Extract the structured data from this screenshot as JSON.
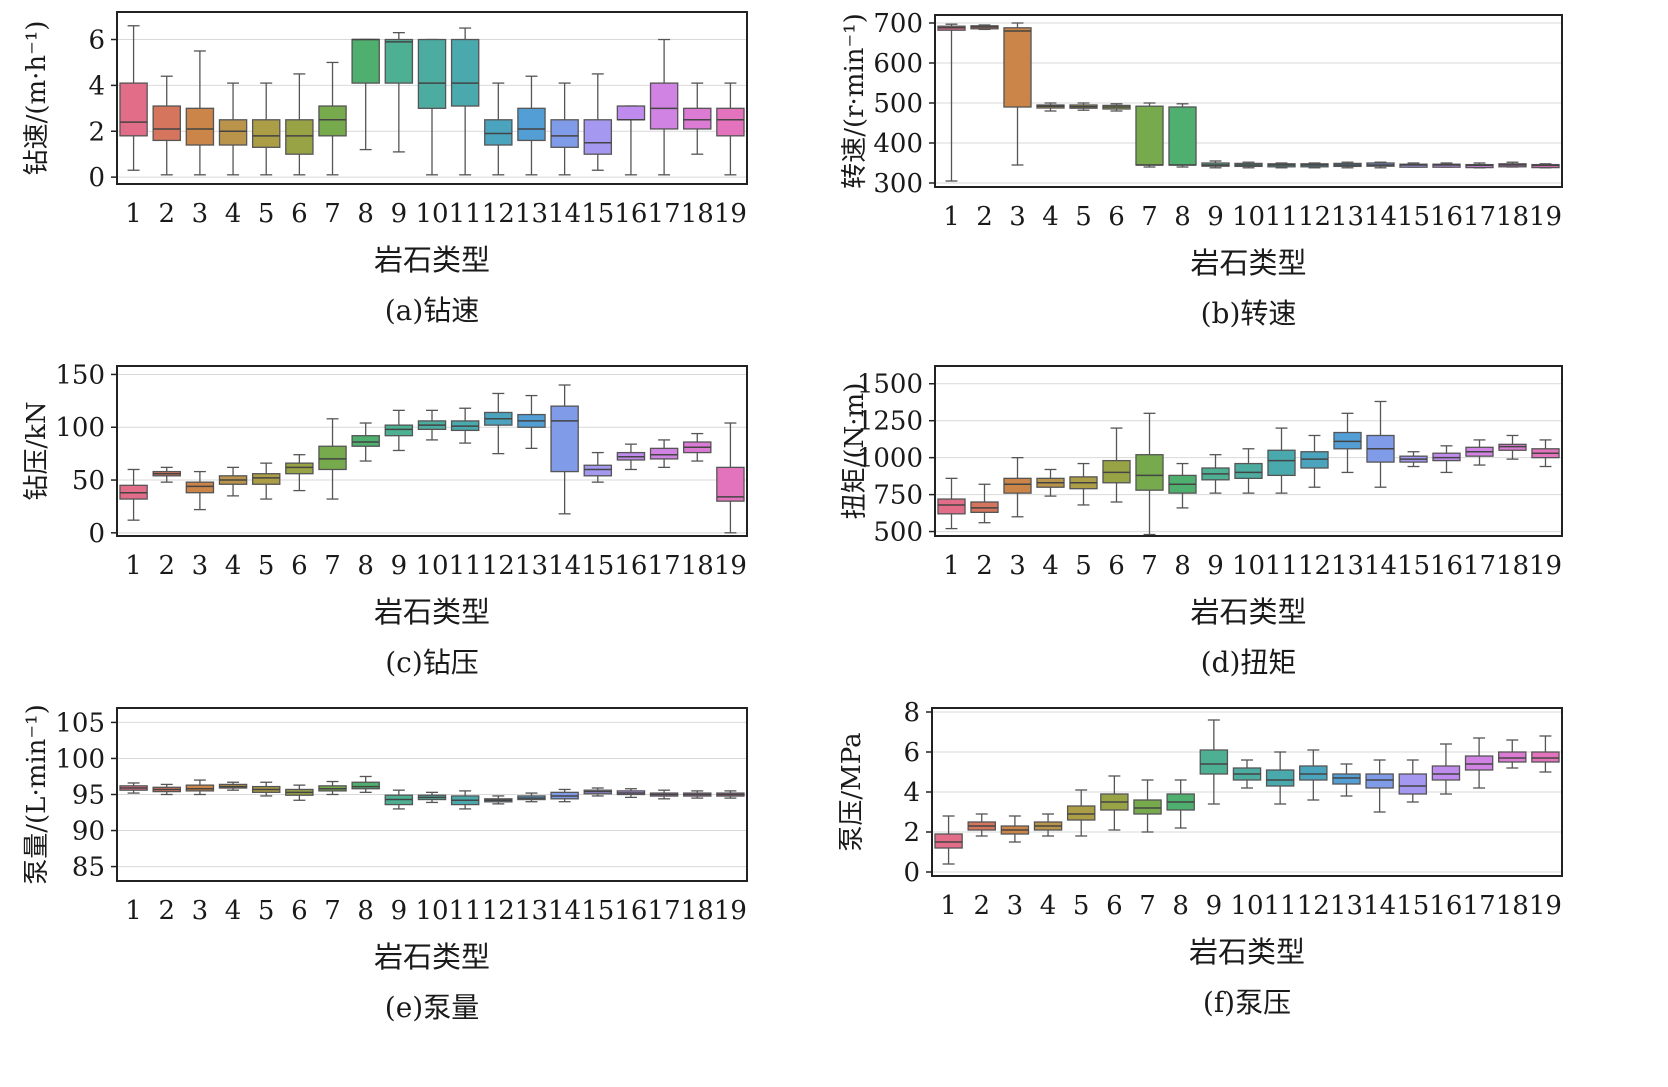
{
  "figure_colors": [
    "#e0607e",
    "#d2694f",
    "#c77a38",
    "#b48b3b",
    "#a59437",
    "#8f9b36",
    "#6aa33e",
    "#3fa861",
    "#3ea98a",
    "#3ca598",
    "#3aa1a6",
    "#3b9cb8",
    "#4496d0",
    "#7592e6",
    "#9d8ff0",
    "#b982ec",
    "#cc78df",
    "#d86fd0",
    "#e067b6"
  ],
  "chart_data": [
    {
      "type": "box",
      "id": "a",
      "caption": "(a)钻速",
      "ylabel": "钻速/(m·h⁻¹)",
      "xlabel": "岩石类型",
      "categories": [
        "1",
        "2",
        "3",
        "4",
        "5",
        "6",
        "7",
        "8",
        "9",
        "10",
        "11",
        "12",
        "13",
        "14",
        "15",
        "16",
        "17",
        "18",
        "19"
      ],
      "ylim": [
        -0.3,
        7.2
      ],
      "yticks": [
        0,
        2,
        4,
        6
      ],
      "grid": true,
      "boxes": [
        {
          "min": 0.3,
          "q1": 1.8,
          "median": 2.4,
          "q3": 4.1,
          "max": 6.6
        },
        {
          "min": 0.1,
          "q1": 1.6,
          "median": 2.1,
          "q3": 3.1,
          "max": 4.4
        },
        {
          "min": 0.1,
          "q1": 1.4,
          "median": 2.1,
          "q3": 3.0,
          "max": 5.5
        },
        {
          "min": 0.1,
          "q1": 1.4,
          "median": 2.0,
          "q3": 2.5,
          "max": 4.1
        },
        {
          "min": 0.1,
          "q1": 1.3,
          "median": 1.8,
          "q3": 2.5,
          "max": 4.1
        },
        {
          "min": 0.1,
          "q1": 1.0,
          "median": 1.8,
          "q3": 2.5,
          "max": 4.5
        },
        {
          "min": 0.1,
          "q1": 1.8,
          "median": 2.5,
          "q3": 3.1,
          "max": 5.0
        },
        {
          "min": 1.2,
          "q1": 4.1,
          "median": 6.0,
          "q3": 6.0,
          "max": 6.0
        },
        {
          "min": 1.1,
          "q1": 4.1,
          "median": 5.9,
          "q3": 6.0,
          "max": 6.3
        },
        {
          "min": 0.1,
          "q1": 3.0,
          "median": 4.1,
          "q3": 6.0,
          "max": 6.0
        },
        {
          "min": 0.1,
          "q1": 3.1,
          "median": 4.1,
          "q3": 6.0,
          "max": 6.5
        },
        {
          "min": 0.1,
          "q1": 1.4,
          "median": 1.9,
          "q3": 2.5,
          "max": 4.1
        },
        {
          "min": 0.1,
          "q1": 1.6,
          "median": 2.1,
          "q3": 3.0,
          "max": 4.4
        },
        {
          "min": 0.1,
          "q1": 1.3,
          "median": 1.8,
          "q3": 2.5,
          "max": 4.1
        },
        {
          "min": 0.3,
          "q1": 1.0,
          "median": 1.5,
          "q3": 2.5,
          "max": 4.5
        },
        {
          "min": 0.1,
          "q1": 2.5,
          "median": 2.5,
          "q3": 3.1,
          "max": 3.1
        },
        {
          "min": 0.1,
          "q1": 2.1,
          "median": 3.0,
          "q3": 4.1,
          "max": 6.0
        },
        {
          "min": 1.0,
          "q1": 2.1,
          "median": 2.5,
          "q3": 3.0,
          "max": 4.1
        },
        {
          "min": 0.1,
          "q1": 1.8,
          "median": 2.5,
          "q3": 3.0,
          "max": 4.1
        }
      ]
    },
    {
      "type": "box",
      "id": "b",
      "caption": "(b)转速",
      "ylabel": "转速/(r·min⁻¹)",
      "xlabel": "岩石类型",
      "categories": [
        "1",
        "2",
        "3",
        "4",
        "5",
        "6",
        "7",
        "8",
        "9",
        "10",
        "11",
        "12",
        "13",
        "14",
        "15",
        "16",
        "17",
        "18",
        "19"
      ],
      "ylim": [
        290,
        720
      ],
      "yticks": [
        300,
        400,
        500,
        600,
        700
      ],
      "grid": true,
      "boxes": [
        {
          "min": 305,
          "q1": 682,
          "median": 688,
          "q3": 692,
          "max": 697
        },
        {
          "min": 684,
          "q1": 686,
          "median": 690,
          "q3": 693,
          "max": 695
        },
        {
          "min": 345,
          "q1": 490,
          "median": 680,
          "q3": 688,
          "max": 700
        },
        {
          "min": 480,
          "q1": 488,
          "median": 492,
          "q3": 495,
          "max": 500
        },
        {
          "min": 482,
          "q1": 487,
          "median": 491,
          "q3": 495,
          "max": 500
        },
        {
          "min": 480,
          "q1": 485,
          "median": 490,
          "q3": 494,
          "max": 498
        },
        {
          "min": 340,
          "q1": 345,
          "median": 345,
          "q3": 492,
          "max": 500
        },
        {
          "min": 340,
          "q1": 345,
          "median": 345,
          "q3": 490,
          "max": 498
        },
        {
          "min": 338,
          "q1": 342,
          "median": 345,
          "q3": 350,
          "max": 355
        },
        {
          "min": 338,
          "q1": 342,
          "median": 345,
          "q3": 349,
          "max": 352
        },
        {
          "min": 338,
          "q1": 342,
          "median": 345,
          "q3": 348,
          "max": 350
        },
        {
          "min": 338,
          "q1": 342,
          "median": 345,
          "q3": 348,
          "max": 350
        },
        {
          "min": 338,
          "q1": 342,
          "median": 345,
          "q3": 349,
          "max": 352
        },
        {
          "min": 338,
          "q1": 342,
          "median": 345,
          "q3": 350,
          "max": 352
        },
        {
          "min": 340,
          "q1": 343,
          "median": 345,
          "q3": 347,
          "max": 350
        },
        {
          "min": 340,
          "q1": 343,
          "median": 345,
          "q3": 347,
          "max": 350
        },
        {
          "min": 338,
          "q1": 342,
          "median": 344,
          "q3": 346,
          "max": 350
        },
        {
          "min": 340,
          "q1": 342,
          "median": 345,
          "q3": 348,
          "max": 352
        },
        {
          "min": 338,
          "q1": 342,
          "median": 344,
          "q3": 346,
          "max": 348
        }
      ]
    },
    {
      "type": "box",
      "id": "c",
      "caption": "(c)钻压",
      "ylabel": "钻压/kN",
      "xlabel": "岩石类型",
      "categories": [
        "1",
        "2",
        "3",
        "4",
        "5",
        "6",
        "7",
        "8",
        "9",
        "10",
        "11",
        "12",
        "13",
        "14",
        "15",
        "16",
        "17",
        "18",
        "19"
      ],
      "ylim": [
        -3,
        158
      ],
      "yticks": [
        0,
        50,
        100,
        150
      ],
      "grid": true,
      "boxes": [
        {
          "min": 12,
          "q1": 32,
          "median": 38,
          "q3": 45,
          "max": 60
        },
        {
          "min": 48,
          "q1": 54,
          "median": 56,
          "q3": 58,
          "max": 62
        },
        {
          "min": 22,
          "q1": 38,
          "median": 44,
          "q3": 48,
          "max": 58
        },
        {
          "min": 35,
          "q1": 46,
          "median": 50,
          "q3": 54,
          "max": 62
        },
        {
          "min": 32,
          "q1": 46,
          "median": 52,
          "q3": 56,
          "max": 66
        },
        {
          "min": 40,
          "q1": 56,
          "median": 62,
          "q3": 66,
          "max": 74
        },
        {
          "min": 32,
          "q1": 60,
          "median": 70,
          "q3": 82,
          "max": 108
        },
        {
          "min": 68,
          "q1": 82,
          "median": 86,
          "q3": 92,
          "max": 104
        },
        {
          "min": 78,
          "q1": 92,
          "median": 98,
          "q3": 102,
          "max": 116
        },
        {
          "min": 88,
          "q1": 98,
          "median": 102,
          "q3": 106,
          "max": 116
        },
        {
          "min": 85,
          "q1": 97,
          "median": 101,
          "q3": 106,
          "max": 118
        },
        {
          "min": 75,
          "q1": 102,
          "median": 108,
          "q3": 114,
          "max": 132
        },
        {
          "min": 80,
          "q1": 100,
          "median": 106,
          "q3": 112,
          "max": 130
        },
        {
          "min": 18,
          "q1": 58,
          "median": 106,
          "q3": 120,
          "max": 140
        },
        {
          "min": 48,
          "q1": 54,
          "median": 60,
          "q3": 64,
          "max": 76
        },
        {
          "min": 60,
          "q1": 69,
          "median": 72,
          "q3": 76,
          "max": 84
        },
        {
          "min": 62,
          "q1": 70,
          "median": 74,
          "q3": 80,
          "max": 88
        },
        {
          "min": 68,
          "q1": 76,
          "median": 81,
          "q3": 86,
          "max": 94
        },
        {
          "min": 0,
          "q1": 30,
          "median": 34,
          "q3": 62,
          "max": 104
        }
      ]
    },
    {
      "type": "box",
      "id": "d",
      "caption": "(d)扭矩",
      "ylabel": "扭矩/(N·m)",
      "xlabel": "岩石类型",
      "categories": [
        "1",
        "2",
        "3",
        "4",
        "5",
        "6",
        "7",
        "8",
        "9",
        "10",
        "11",
        "12",
        "13",
        "14",
        "15",
        "16",
        "17",
        "18",
        "19"
      ],
      "ylim": [
        470,
        1620
      ],
      "yticks": [
        500,
        750,
        1000,
        1250,
        1500
      ],
      "grid": true,
      "boxes": [
        {
          "min": 520,
          "q1": 620,
          "median": 680,
          "q3": 720,
          "max": 860
        },
        {
          "min": 560,
          "q1": 630,
          "median": 660,
          "q3": 700,
          "max": 820
        },
        {
          "min": 600,
          "q1": 760,
          "median": 820,
          "q3": 860,
          "max": 1000
        },
        {
          "min": 740,
          "q1": 800,
          "median": 830,
          "q3": 860,
          "max": 920
        },
        {
          "min": 680,
          "q1": 790,
          "median": 830,
          "q3": 870,
          "max": 960
        },
        {
          "min": 700,
          "q1": 830,
          "median": 900,
          "q3": 980,
          "max": 1200
        },
        {
          "min": 480,
          "q1": 780,
          "median": 880,
          "q3": 1020,
          "max": 1300
        },
        {
          "min": 660,
          "q1": 760,
          "median": 820,
          "q3": 880,
          "max": 960
        },
        {
          "min": 760,
          "q1": 850,
          "median": 890,
          "q3": 930,
          "max": 1020
        },
        {
          "min": 760,
          "q1": 860,
          "median": 900,
          "q3": 960,
          "max": 1060
        },
        {
          "min": 760,
          "q1": 880,
          "median": 980,
          "q3": 1050,
          "max": 1200
        },
        {
          "min": 800,
          "q1": 930,
          "median": 990,
          "q3": 1040,
          "max": 1150
        },
        {
          "min": 900,
          "q1": 1060,
          "median": 1110,
          "q3": 1170,
          "max": 1300
        },
        {
          "min": 800,
          "q1": 970,
          "median": 1060,
          "q3": 1150,
          "max": 1380
        },
        {
          "min": 940,
          "q1": 970,
          "median": 990,
          "q3": 1010,
          "max": 1040
        },
        {
          "min": 900,
          "q1": 980,
          "median": 1000,
          "q3": 1030,
          "max": 1080
        },
        {
          "min": 950,
          "q1": 1010,
          "median": 1040,
          "q3": 1070,
          "max": 1120
        },
        {
          "min": 990,
          "q1": 1050,
          "median": 1075,
          "q3": 1090,
          "max": 1150
        },
        {
          "min": 940,
          "q1": 1000,
          "median": 1030,
          "q3": 1060,
          "max": 1120
        }
      ]
    },
    {
      "type": "box",
      "id": "e",
      "caption": "(e)泵量",
      "ylabel": "泵量/(L·min⁻¹)",
      "xlabel": "岩石类型",
      "categories": [
        "1",
        "2",
        "3",
        "4",
        "5",
        "6",
        "7",
        "8",
        "9",
        "10",
        "11",
        "12",
        "13",
        "14",
        "15",
        "16",
        "17",
        "18",
        "19"
      ],
      "ylim": [
        83,
        107
      ],
      "yticks": [
        85,
        90,
        95,
        100,
        105
      ],
      "grid": true,
      "boxes": [
        {
          "min": 95.2,
          "q1": 95.6,
          "median": 95.9,
          "q3": 96.2,
          "max": 96.6
        },
        {
          "min": 95.0,
          "q1": 95.4,
          "median": 95.7,
          "q3": 96.0,
          "max": 96.4
        },
        {
          "min": 95.0,
          "q1": 95.5,
          "median": 95.8,
          "q3": 96.3,
          "max": 97.0
        },
        {
          "min": 95.6,
          "q1": 95.9,
          "median": 96.1,
          "q3": 96.4,
          "max": 96.7
        },
        {
          "min": 94.8,
          "q1": 95.3,
          "median": 95.7,
          "q3": 96.1,
          "max": 96.7
        },
        {
          "min": 94.2,
          "q1": 94.9,
          "median": 95.3,
          "q3": 95.7,
          "max": 96.3
        },
        {
          "min": 95.0,
          "q1": 95.5,
          "median": 95.8,
          "q3": 96.2,
          "max": 96.8
        },
        {
          "min": 95.3,
          "q1": 95.8,
          "median": 96.1,
          "q3": 96.7,
          "max": 97.5
        },
        {
          "min": 93.0,
          "q1": 93.6,
          "median": 94.3,
          "q3": 94.9,
          "max": 95.6
        },
        {
          "min": 93.9,
          "q1": 94.3,
          "median": 94.6,
          "q3": 94.9,
          "max": 95.3
        },
        {
          "min": 93.0,
          "q1": 93.6,
          "median": 94.2,
          "q3": 94.8,
          "max": 95.5
        },
        {
          "min": 93.7,
          "q1": 94.0,
          "median": 94.2,
          "q3": 94.4,
          "max": 94.8
        },
        {
          "min": 94.0,
          "q1": 94.3,
          "median": 94.5,
          "q3": 94.8,
          "max": 95.2
        },
        {
          "min": 94.0,
          "q1": 94.4,
          "median": 94.8,
          "q3": 95.3,
          "max": 95.7
        },
        {
          "min": 94.8,
          "q1": 95.1,
          "median": 95.4,
          "q3": 95.6,
          "max": 95.9
        },
        {
          "min": 94.6,
          "q1": 95.0,
          "median": 95.2,
          "q3": 95.5,
          "max": 95.8
        },
        {
          "min": 94.4,
          "q1": 94.8,
          "median": 95.0,
          "q3": 95.2,
          "max": 95.6
        },
        {
          "min": 94.5,
          "q1": 94.8,
          "median": 95.0,
          "q3": 95.2,
          "max": 95.5
        },
        {
          "min": 94.5,
          "q1": 94.8,
          "median": 95.0,
          "q3": 95.2,
          "max": 95.5
        }
      ]
    },
    {
      "type": "box",
      "id": "f",
      "caption": "(f)泵压",
      "ylabel": "泵压/MPa",
      "xlabel": "岩石类型",
      "categories": [
        "1",
        "2",
        "3",
        "4",
        "5",
        "6",
        "7",
        "8",
        "9",
        "10",
        "11",
        "12",
        "13",
        "14",
        "15",
        "16",
        "17",
        "18",
        "19"
      ],
      "ylim": [
        -0.2,
        8.2
      ],
      "yticks": [
        0,
        2,
        4,
        6,
        8
      ],
      "grid": true,
      "boxes": [
        {
          "min": 0.4,
          "q1": 1.2,
          "median": 1.5,
          "q3": 1.9,
          "max": 2.8
        },
        {
          "min": 1.8,
          "q1": 2.1,
          "median": 2.3,
          "q3": 2.5,
          "max": 2.9
        },
        {
          "min": 1.5,
          "q1": 1.9,
          "median": 2.1,
          "q3": 2.3,
          "max": 2.8
        },
        {
          "min": 1.8,
          "q1": 2.1,
          "median": 2.3,
          "q3": 2.5,
          "max": 2.9
        },
        {
          "min": 1.8,
          "q1": 2.6,
          "median": 2.9,
          "q3": 3.3,
          "max": 4.1
        },
        {
          "min": 2.1,
          "q1": 3.1,
          "median": 3.5,
          "q3": 3.9,
          "max": 4.8
        },
        {
          "min": 2.0,
          "q1": 2.9,
          "median": 3.2,
          "q3": 3.6,
          "max": 4.6
        },
        {
          "min": 2.2,
          "q1": 3.1,
          "median": 3.5,
          "q3": 3.9,
          "max": 4.6
        },
        {
          "min": 3.4,
          "q1": 4.9,
          "median": 5.4,
          "q3": 6.1,
          "max": 7.6
        },
        {
          "min": 4.2,
          "q1": 4.6,
          "median": 4.9,
          "q3": 5.2,
          "max": 5.6
        },
        {
          "min": 3.4,
          "q1": 4.3,
          "median": 4.6,
          "q3": 5.1,
          "max": 6.0
        },
        {
          "min": 3.6,
          "q1": 4.6,
          "median": 4.9,
          "q3": 5.3,
          "max": 6.1
        },
        {
          "min": 3.8,
          "q1": 4.4,
          "median": 4.7,
          "q3": 4.9,
          "max": 5.4
        },
        {
          "min": 3.0,
          "q1": 4.2,
          "median": 4.6,
          "q3": 4.9,
          "max": 5.6
        },
        {
          "min": 3.5,
          "q1": 3.9,
          "median": 4.3,
          "q3": 4.9,
          "max": 5.6
        },
        {
          "min": 3.9,
          "q1": 4.6,
          "median": 4.9,
          "q3": 5.3,
          "max": 6.4
        },
        {
          "min": 4.2,
          "q1": 5.1,
          "median": 5.4,
          "q3": 5.8,
          "max": 6.7
        },
        {
          "min": 5.2,
          "q1": 5.5,
          "median": 5.7,
          "q3": 6.0,
          "max": 6.6
        },
        {
          "min": 5.0,
          "q1": 5.5,
          "median": 5.7,
          "q3": 6.0,
          "max": 6.8
        }
      ]
    }
  ]
}
